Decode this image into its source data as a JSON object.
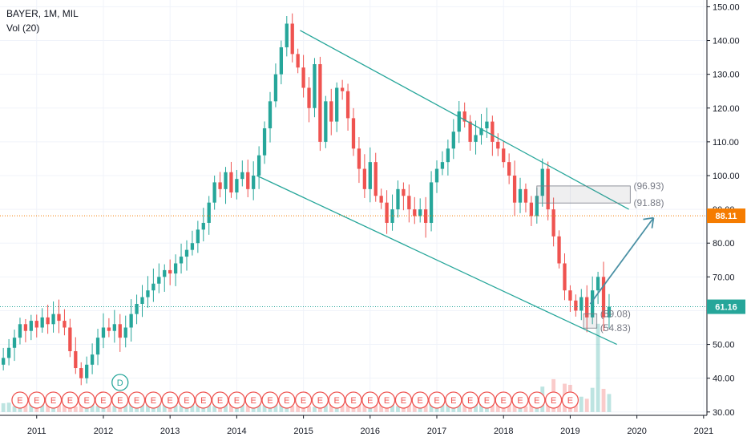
{
  "header": {
    "symbol_line": "BAYER, 1M, MIL",
    "volume_line": "Vol (20)"
  },
  "chart_data": {
    "type": "candlestick",
    "x_range": [
      2010.45,
      2021.05
    ],
    "y_range": [
      29,
      152
    ],
    "x_ticks": [
      "2011",
      "2012",
      "2013",
      "2014",
      "2015",
      "2016",
      "2017",
      "2018",
      "2019",
      "2020",
      "2021"
    ],
    "y_ticks": [
      "150.00",
      "140.00",
      "130.00",
      "120.00",
      "110.00",
      "100.00",
      "90.00",
      "80.00",
      "70.00",
      "60.00",
      "50.00",
      "40.00",
      "30.00"
    ],
    "price_markers": [
      {
        "label": "88.11",
        "value": 88.11,
        "color": "#f57c00",
        "style": "dotted"
      },
      {
        "label": "61.16",
        "value": 61.16,
        "color": "#26a69a",
        "style": "dotted"
      }
    ],
    "box_labels": [
      {
        "text": "(96.93)",
        "value": 96.93
      },
      {
        "text": "(91.88)",
        "value": 91.88
      },
      {
        "text": "(59.08)",
        "value": 59.08
      },
      {
        "text": "(54.83)",
        "value": 54.83
      }
    ],
    "earnings_marker": "E",
    "dividend_marker": "D",
    "candles_start": 2010.5,
    "closes": [
      46,
      49,
      52,
      56,
      54,
      57,
      55,
      58,
      56,
      59,
      57,
      55,
      48,
      43,
      40,
      44,
      47,
      52,
      55,
      54,
      56,
      52,
      55,
      59,
      62,
      64,
      66,
      68,
      70,
      72,
      71,
      74,
      76,
      78,
      80,
      84,
      86,
      92,
      98,
      96,
      101,
      95,
      99,
      101,
      96,
      100,
      106,
      114,
      122,
      130,
      138,
      145,
      136,
      132,
      126,
      120,
      133,
      110,
      122,
      116,
      126,
      125,
      117,
      108,
      102,
      96,
      104,
      94,
      92,
      86,
      90,
      96,
      94,
      90,
      88,
      90,
      86,
      98,
      102,
      104,
      108,
      113,
      119,
      116,
      110,
      112,
      114,
      116,
      110,
      108,
      104,
      100,
      92,
      96,
      92,
      88,
      94,
      102,
      90,
      82,
      74,
      66,
      63,
      60,
      64,
      58,
      66,
      70,
      58,
      61.16
    ],
    "volume_note": "volume bars along bottom"
  }
}
